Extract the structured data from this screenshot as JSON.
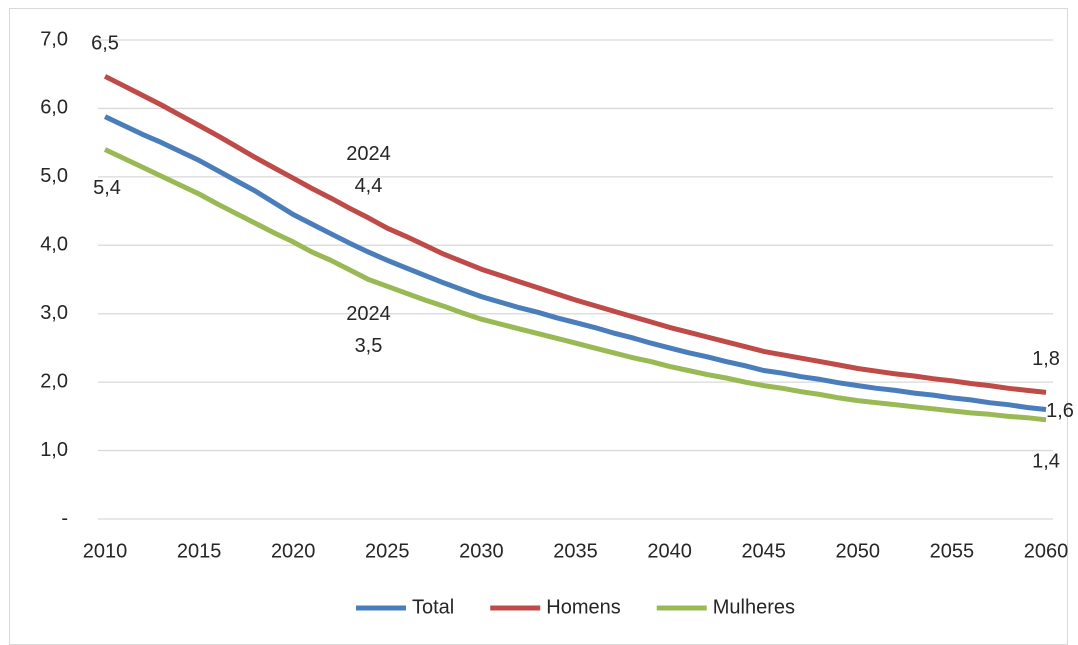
{
  "chart_data": {
    "type": "line",
    "x": [
      2010,
      2011,
      2012,
      2013,
      2014,
      2015,
      2016,
      2017,
      2018,
      2019,
      2020,
      2021,
      2022,
      2023,
      2024,
      2025,
      2026,
      2027,
      2028,
      2029,
      2030,
      2031,
      2032,
      2033,
      2034,
      2035,
      2036,
      2037,
      2038,
      2039,
      2040,
      2041,
      2042,
      2043,
      2044,
      2045,
      2046,
      2047,
      2048,
      2049,
      2050,
      2051,
      2052,
      2053,
      2054,
      2055,
      2056,
      2057,
      2058,
      2059,
      2060
    ],
    "series": [
      {
        "name": "Total",
        "color": "#4a7ebb",
        "values": [
          5.88,
          5.75,
          5.62,
          5.5,
          5.37,
          5.24,
          5.09,
          4.94,
          4.79,
          4.62,
          4.45,
          4.31,
          4.17,
          4.03,
          3.9,
          3.78,
          3.67,
          3.56,
          3.45,
          3.35,
          3.25,
          3.17,
          3.09,
          3.02,
          2.94,
          2.87,
          2.8,
          2.72,
          2.65,
          2.57,
          2.5,
          2.43,
          2.37,
          2.3,
          2.24,
          2.17,
          2.13,
          2.08,
          2.04,
          1.99,
          1.95,
          1.91,
          1.88,
          1.84,
          1.81,
          1.77,
          1.74,
          1.7,
          1.67,
          1.63,
          1.6
        ]
      },
      {
        "name": "Homens",
        "color": "#be4b48",
        "values": [
          6.47,
          6.33,
          6.19,
          6.05,
          5.9,
          5.75,
          5.6,
          5.44,
          5.28,
          5.13,
          4.98,
          4.83,
          4.69,
          4.54,
          4.4,
          4.25,
          4.13,
          4.0,
          3.87,
          3.76,
          3.65,
          3.56,
          3.47,
          3.38,
          3.29,
          3.2,
          3.12,
          3.04,
          2.96,
          2.88,
          2.8,
          2.73,
          2.66,
          2.59,
          2.52,
          2.45,
          2.4,
          2.35,
          2.3,
          2.25,
          2.2,
          2.16,
          2.12,
          2.09,
          2.05,
          2.02,
          1.98,
          1.95,
          1.91,
          1.88,
          1.85
        ]
      },
      {
        "name": "Mulheres",
        "color": "#98b954",
        "values": [
          5.4,
          5.27,
          5.14,
          5.01,
          4.88,
          4.75,
          4.6,
          4.46,
          4.32,
          4.18,
          4.05,
          3.9,
          3.78,
          3.64,
          3.5,
          3.4,
          3.3,
          3.2,
          3.11,
          3.01,
          2.92,
          2.85,
          2.78,
          2.71,
          2.64,
          2.57,
          2.5,
          2.43,
          2.36,
          2.3,
          2.23,
          2.17,
          2.11,
          2.06,
          2.0,
          1.95,
          1.91,
          1.86,
          1.82,
          1.77,
          1.73,
          1.7,
          1.67,
          1.64,
          1.61,
          1.58,
          1.55,
          1.53,
          1.5,
          1.48,
          1.45
        ]
      }
    ],
    "xlim": [
      2010,
      2060
    ],
    "xticks": [
      2010,
      2015,
      2020,
      2025,
      2030,
      2035,
      2040,
      2045,
      2050,
      2055,
      2060
    ],
    "ylim": [
      0,
      7
    ],
    "yticks": [
      {
        "value": 0,
        "label": "-"
      },
      {
        "value": 1,
        "label": "1,0"
      },
      {
        "value": 2,
        "label": "2,0"
      },
      {
        "value": 3,
        "label": "3,0"
      },
      {
        "value": 4,
        "label": "4,0"
      },
      {
        "value": 5,
        "label": "5,0"
      },
      {
        "value": 6,
        "label": "6,0"
      },
      {
        "value": 7,
        "label": "7,0"
      }
    ],
    "grid": true,
    "legend": "bottom",
    "annotations": [
      {
        "x": 2010,
        "y": 6.5,
        "lines": [
          "6,5"
        ]
      },
      {
        "x": 2010,
        "y": 5.4,
        "lines": [
          "5,4"
        ]
      },
      {
        "x": 2024,
        "y": 4.4,
        "lines": [
          "2024",
          "4,4"
        ]
      },
      {
        "x": 2024,
        "y": 3.5,
        "lines": [
          "2024",
          "3,5"
        ]
      },
      {
        "x": 2060,
        "y": 1.8,
        "lines": [
          "1,8"
        ]
      },
      {
        "x": 2060,
        "y": 1.6,
        "lines": [
          "1,6"
        ]
      },
      {
        "x": 2060,
        "y": 1.4,
        "lines": [
          "1,4"
        ]
      }
    ]
  }
}
